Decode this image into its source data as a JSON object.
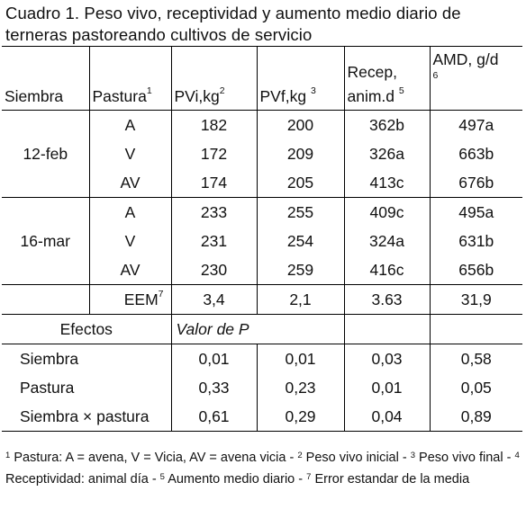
{
  "title": "Cuadro 1. Peso vivo, receptividad y aumento medio diario de terneras pastoreando cultivos de servicio",
  "headers": {
    "siembra": "Siembra",
    "pastura": "Pastura",
    "pastura_sup": "1",
    "pvi": "PVi,kg",
    "pvi_sup": "2",
    "pvf": "PVf,kg",
    "pvf_sup": "3",
    "recep_line1": "Recep,",
    "recep_line2": "anim.d",
    "recep_sup": "5",
    "amd_line1": "AMD, g/d",
    "amd_sup": "6"
  },
  "groups": [
    {
      "siembra": "12-feb",
      "rows": [
        {
          "pastura": "A",
          "pvi": "182",
          "pvf": "200",
          "recep": "362b",
          "amd": "497a"
        },
        {
          "pastura": "V",
          "pvi": "172",
          "pvf": "209",
          "recep": "326a",
          "amd": "663b"
        },
        {
          "pastura": "AV",
          "pvi": "174",
          "pvf": "205",
          "recep": "413c",
          "amd": "676b"
        }
      ]
    },
    {
      "siembra": "16-mar",
      "rows": [
        {
          "pastura": "A",
          "pvi": "233",
          "pvf": "255",
          "recep": "409c",
          "amd": "495a"
        },
        {
          "pastura": "V",
          "pvi": "231",
          "pvf": "254",
          "recep": "324a",
          "amd": "631b"
        },
        {
          "pastura": "AV",
          "pvi": "230",
          "pvf": "259",
          "recep": "416c",
          "amd": "656b"
        }
      ]
    }
  ],
  "eem": {
    "label": "EEM",
    "sup": "7",
    "pvi": "3,4",
    "pvf": "2,1",
    "recep": "3.63",
    "amd": "31,9"
  },
  "efectos": {
    "label": "Efectos",
    "valor_label": "Valor de P",
    "rows": [
      {
        "name": "Siembra",
        "pvi": "0,01",
        "pvf": "0,01",
        "recep": "0,03",
        "amd": "0,58"
      },
      {
        "name": "Pastura",
        "pvi": "0,33",
        "pvf": "0,23",
        "recep": "0,01",
        "amd": "0,05"
      },
      {
        "name": "Siembra × pastura",
        "pvi": "0,61",
        "pvf": "0,29",
        "recep": "0,04",
        "amd": "0,89"
      }
    ]
  },
  "footnote": {
    "n1": "1",
    "t1": " Pastura: A = avena, V = Vicia, AV = avena vicia - ",
    "n2": "2",
    "t2": " Peso vivo inicial - ",
    "n3": "3",
    "t3": " Peso vivo final - ",
    "n4": "4",
    "t4": "  Receptividad: animal día - ",
    "n5": "5",
    "t5": " Aumento medio diario - ",
    "n7": "7",
    "t7": " Error estandar de la media"
  }
}
